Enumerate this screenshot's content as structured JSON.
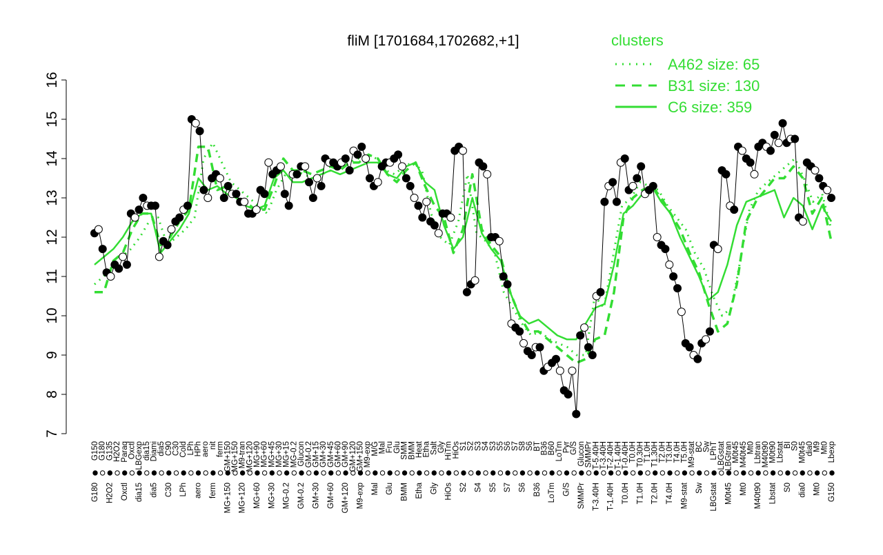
{
  "chart_data": {
    "type": "line",
    "title": "fliM [1701684,1702682,+1]",
    "xlabel": "",
    "ylabel": "",
    "ylim": [
      7,
      16
    ],
    "yticks": [
      7,
      8,
      9,
      10,
      11,
      12,
      13,
      14,
      15,
      16
    ],
    "grid": false,
    "legend": {
      "title": "clusters",
      "placement": "top-right",
      "color": "#33dd33",
      "entries": [
        {
          "label": "A462 size: 65",
          "style": "dotted"
        },
        {
          "label": "B31 size: 130",
          "style": "dashed"
        },
        {
          "label": "C6 size: 359",
          "style": "solid"
        }
      ]
    },
    "x_tick_labels": [
      "G150",
      "G135",
      "G180",
      "H2O2",
      "Paraq",
      "Oxctl",
      "LBGexp",
      "dia15",
      "Diami",
      "dia5",
      "C90",
      "C30",
      "Cold",
      "LPh",
      "HPh",
      "aero",
      "nit",
      "ferm",
      "GM+150",
      "M9-tran",
      "MG+150",
      "MG+120",
      "MG+90",
      "MG+60",
      "MG+45",
      "MG+30",
      "MG+15",
      "MG-0.2",
      "Glucon",
      "GM-0.2",
      "GM+15",
      "GM+30",
      "GM+45",
      "GM+60",
      "GM+90",
      "GM+120",
      "GM+150",
      "M9-exp",
      "M/G",
      "Mal",
      "Fru",
      "Glu",
      "SMM",
      "BMM",
      "Heat",
      "Etha",
      "Salt",
      "Gly",
      "HiTm",
      "HiOs",
      "S1",
      "S2",
      "S3",
      "S4",
      "S5",
      "S6",
      "S7",
      "S8",
      "BT",
      "B36",
      "B60",
      "LoTm",
      "Pyr",
      "G/S",
      "SMMPr",
      "T-5.40H",
      "T-3.40H",
      "T-2.40H",
      "T0.0H",
      "T0.30H",
      "T1.0H",
      "T2.0H",
      "T3.0H",
      "T4.0H",
      "T5.0H",
      "M9-stat",
      "BC",
      "Sw",
      "LPhT",
      "LBGstat",
      "LBGtran",
      "M0t45",
      "M40t45",
      "Mt0",
      "Lbtran",
      "M40t90",
      "M0t90",
      "Lbstat",
      "BI",
      "S0",
      "dia0",
      "Lbexp"
    ],
    "x_tick_labels_drawn": [
      "G150",
      "G180",
      "G135",
      "H2O2",
      "Paraq",
      "Oxctl",
      "LBGexp",
      "dia15",
      "Diami",
      "dia5",
      "C90",
      "C30",
      "Cold",
      "LPh",
      "HPh",
      "aero",
      "nit",
      "ferm",
      "GM+150",
      "MG+150",
      "M9-tran",
      "MG+120",
      "MG+90",
      "MG+60",
      "MG+45",
      "MG+30",
      "MG+15",
      "MG-0.2",
      "Glucon",
      "GM-0.2",
      "GM+15",
      "GM+30",
      "GM+45",
      "GM+60",
      "GM+90",
      "GM+120",
      "GM+150",
      "M9-exp",
      "M/G",
      "Mal",
      "Fru",
      "Glu",
      "SMM",
      "BMM",
      "Heat",
      "Etha",
      "Salt",
      "Gly",
      "HiTm",
      "HiOs",
      "S1",
      "S2",
      "S3",
      "S4",
      "S3",
      "S5",
      "S6",
      "S7",
      "S8",
      "S6",
      "BT",
      "B36",
      "B60",
      "LoTm",
      "Pyr",
      "G/S",
      "Glucon",
      "SMMPr",
      "T-5.40H",
      "T-3.40H",
      "T-2.40H",
      "T-1.40H",
      "T-0.40H",
      "T0.0H",
      "T0.30H",
      "T1.0H",
      "T1.30H",
      "T2.0H",
      "T3.0H",
      "T4.0H",
      "T5.0H",
      "M9-stat",
      "BC",
      "Sw",
      "LPhT",
      "LBGstat",
      "LBGtran",
      "M0t45",
      "M40t45",
      "Mt0",
      "Lbtran",
      "M40t90",
      "M0t90",
      "Lbstat",
      "BI",
      "S0",
      "M0t45",
      "dia0",
      "M9",
      "Mt0",
      "Lbexp"
    ],
    "points": [
      12.1,
      12.2,
      11.7,
      11.1,
      11.0,
      11.3,
      11.2,
      11.5,
      11.3,
      12.6,
      12.5,
      12.7,
      13.0,
      12.8,
      12.8,
      12.8,
      11.5,
      11.9,
      11.8,
      12.2,
      12.4,
      12.5,
      12.7,
      12.8,
      15.0,
      14.9,
      14.7,
      13.2,
      13.0,
      13.5,
      13.6,
      13.5,
      13.0,
      13.3,
      13.1,
      13.1,
      12.9,
      12.9,
      12.6,
      12.6,
      12.7,
      13.2,
      13.1,
      13.9,
      13.6,
      13.7,
      13.8,
      13.1,
      12.8,
      13.6,
      13.6,
      13.8,
      13.8,
      13.4,
      13.0,
      13.5,
      13.3,
      14.0,
      13.9,
      13.9,
      13.8,
      13.9,
      14.0,
      13.7,
      14.2,
      14.1,
      14.3,
      14.0,
      13.5,
      13.3,
      13.4,
      13.8,
      13.9,
      13.9,
      14.0,
      14.1,
      13.8,
      13.5,
      13.3,
      13.0,
      12.8,
      12.5,
      12.9,
      12.4,
      12.3,
      12.1,
      12.6,
      12.6,
      12.5,
      14.2,
      14.3,
      14.2,
      10.6,
      10.8,
      10.9,
      13.9,
      13.8,
      13.6,
      12.0,
      12.0,
      11.9,
      11.0,
      10.8,
      9.8,
      9.7,
      9.6,
      9.3,
      9.1,
      9.0,
      9.2,
      9.2,
      8.6,
      8.7,
      8.8,
      8.9,
      8.6,
      8.1,
      8.0,
      8.6,
      7.5,
      9.5,
      9.7,
      9.2,
      9.0,
      10.5,
      10.6,
      12.9,
      13.3,
      13.4,
      12.9,
      13.9,
      14.0,
      13.2,
      13.3,
      13.5,
      13.8,
      13.1,
      13.2,
      13.3,
      12.0,
      11.8,
      11.7,
      11.3,
      11.0,
      10.7,
      10.1,
      9.3,
      9.2,
      9.0,
      8.9,
      9.3,
      9.4,
      9.6,
      11.8,
      11.7,
      13.7,
      13.6,
      12.8,
      12.7,
      14.3,
      14.2,
      14.0,
      13.9,
      13.6,
      14.3,
      14.4,
      14.3,
      14.2,
      14.6,
      14.4,
      14.9,
      14.4,
      14.5,
      14.5,
      12.5,
      12.4,
      13.9,
      13.8,
      13.7,
      13.5,
      13.3,
      13.2,
      13.0
    ],
    "series": [
      {
        "style": "dotted",
        "values": [
          10.8,
          11.0,
          11.3,
          11.5,
          11.7,
          12.0,
          12.4,
          12.5,
          11.8,
          12.0,
          12.2,
          12.5,
          14.0,
          14.4,
          13.9,
          13.4,
          13.2,
          13.0,
          12.8,
          12.6,
          13.2,
          13.6,
          13.7,
          13.6,
          13.5,
          13.6,
          13.7,
          13.8,
          13.9,
          14.0,
          14.1,
          14.0,
          13.7,
          13.6,
          13.8,
          13.9,
          13.7,
          12.6,
          12.0,
          11.8,
          12.4,
          13.6,
          12.1,
          11.9,
          11.6,
          10.6,
          10.2,
          9.8,
          9.5,
          9.6,
          9.4,
          9.3,
          9.2,
          9.0,
          9.0,
          10.5,
          10.2,
          11.5,
          12.8,
          13.0,
          13.4,
          13.3,
          13.2,
          12.8,
          12.5,
          12.2,
          11.6,
          11.2,
          10.5,
          10.0,
          10.2,
          11.4,
          12.7,
          13.2,
          13.4,
          13.6,
          13.8,
          14.0,
          13.5,
          12.9,
          13.1,
          12.2
        ]
      },
      {
        "style": "dashed",
        "values": [
          10.6,
          10.6,
          11.4,
          11.6,
          12.2,
          12.6,
          12.6,
          11.8,
          12.0,
          12.4,
          12.7,
          14.3,
          14.3,
          13.2,
          13.3,
          13.0,
          12.9,
          12.7,
          12.7,
          13.3,
          14.0,
          13.7,
          13.7,
          13.6,
          13.7,
          13.8,
          13.7,
          13.9,
          13.9,
          14.1,
          14.0,
          13.6,
          13.4,
          13.7,
          13.9,
          13.3,
          12.8,
          12.5,
          11.6,
          12.2,
          13.6,
          12.2,
          11.8,
          11.5,
          10.6,
          10.0,
          9.6,
          9.6,
          9.4,
          9.2,
          9.0,
          8.8,
          8.9,
          9.4,
          9.5,
          10.6,
          12.5,
          13.0,
          13.2,
          13.3,
          13.0,
          12.6,
          12.2,
          11.6,
          11.1,
          10.3,
          9.6,
          9.8,
          10.8,
          12.4,
          12.9,
          13.2,
          13.5,
          13.5,
          13.8,
          13.5,
          12.6,
          13.0,
          11.9
        ]
      },
      {
        "style": "solid",
        "values": [
          11.3,
          11.5,
          11.7,
          12.0,
          12.4,
          12.6,
          12.6,
          11.6,
          11.9,
          12.2,
          12.6,
          13.5,
          13.2,
          13.3,
          13.1,
          13.0,
          12.8,
          12.7,
          12.8,
          13.5,
          13.7,
          13.4,
          13.4,
          13.5,
          13.6,
          13.7,
          13.6,
          13.7,
          13.8,
          13.9,
          13.9,
          13.6,
          13.5,
          13.8,
          13.9,
          13.4,
          13.2,
          12.3,
          11.7,
          12.0,
          13.0,
          12.1,
          11.7,
          11.4,
          10.6,
          10.0,
          9.8,
          9.9,
          9.7,
          9.5,
          9.4,
          9.4,
          9.8,
          10.2,
          10.3,
          11.3,
          12.6,
          12.8,
          13.1,
          13.3,
          12.9,
          12.6,
          12.0,
          11.5,
          11.0,
          10.4,
          10.6,
          11.3,
          12.3,
          12.9,
          13.0,
          13.1,
          13.2,
          12.5,
          13.0,
          12.8,
          12.2,
          12.8,
          12.4
        ]
      }
    ]
  }
}
